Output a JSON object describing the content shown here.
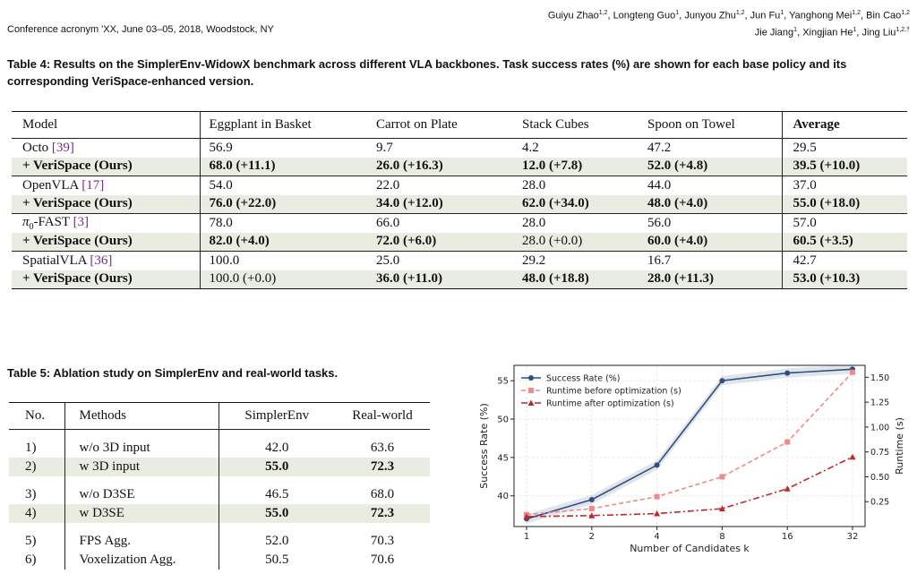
{
  "header": {
    "left": "Conference acronym 'XX, June 03–05, 2018, Woodstock, NY",
    "authors_line1": [
      {
        "name": "Guiyu Zhao",
        "sup": "1,2"
      },
      {
        "name": "Longteng Guo",
        "sup": "1"
      },
      {
        "name": "Junyou Zhu",
        "sup": "1,2"
      },
      {
        "name": "Jun Fu",
        "sup": "1"
      },
      {
        "name": "Yanghong Mei",
        "sup": "1,2"
      },
      {
        "name": "Bin Cao",
        "sup": "1,2"
      }
    ],
    "authors_line2": [
      {
        "name": "Jie Jiang",
        "sup": "1"
      },
      {
        "name": "Xingjian He",
        "sup": "1"
      },
      {
        "name": "Jing Liu",
        "sup": "1,2,†"
      }
    ]
  },
  "table4": {
    "caption": "Table 4: Results on the SimplerEnv-WidowX benchmark across different VLA backbones. Task success rates (%) are shown for each base policy and its corresponding VeriSpace-enhanced version.",
    "headers": [
      "Model",
      "Eggplant in Basket",
      "Carrot on Plate",
      "Stack Cubes",
      "Spoon on Towel",
      "Average"
    ],
    "groups": [
      {
        "base": {
          "model": "Octo",
          "cite": "39",
          "values": [
            "56.9",
            "9.7",
            "4.2",
            "47.2",
            "29.5"
          ]
        },
        "ours": {
          "model": "+ VeriSpace (Ours)",
          "values": [
            "68.0 (+11.1)",
            "26.0 (+16.3)",
            "12.0 (+7.8)",
            "52.0 (+4.8)",
            "39.5 (+10.0)"
          ],
          "bold": [
            true,
            true,
            true,
            true,
            true
          ]
        }
      },
      {
        "base": {
          "model": "OpenVLA",
          "cite": "17",
          "values": [
            "54.0",
            "22.0",
            "28.0",
            "44.0",
            "37.0"
          ]
        },
        "ours": {
          "model": "+ VeriSpace (Ours)",
          "values": [
            "76.0 (+22.0)",
            "34.0 (+12.0)",
            "62.0 (+34.0)",
            "48.0 (+4.0)",
            "55.0 (+18.0)"
          ],
          "bold": [
            true,
            true,
            true,
            true,
            true
          ]
        }
      },
      {
        "base": {
          "model": "π0-FAST",
          "cite": "3",
          "values": [
            "78.0",
            "66.0",
            "28.0",
            "56.0",
            "57.0"
          ]
        },
        "ours": {
          "model": "+ VeriSpace (Ours)",
          "values": [
            "82.0 (+4.0)",
            "72.0 (+6.0)",
            "28.0 (+0.0)",
            "60.0 (+4.0)",
            "60.5 (+3.5)"
          ],
          "bold": [
            true,
            true,
            false,
            true,
            true
          ]
        }
      },
      {
        "base": {
          "model": "SpatialVLA",
          "cite": "36",
          "values": [
            "100.0",
            "25.0",
            "29.2",
            "16.7",
            "42.7"
          ]
        },
        "ours": {
          "model": "+ VeriSpace (Ours)",
          "values": [
            "100.0 (+0.0)",
            "36.0 (+11.0)",
            "48.0 (+18.8)",
            "28.0 (+11.3)",
            "53.0 (+10.3)"
          ],
          "bold": [
            false,
            true,
            true,
            true,
            true
          ]
        }
      }
    ]
  },
  "table5": {
    "caption": "Table 5: Ablation study on SimplerEnv and real-world tasks.",
    "headers": [
      "No.",
      "Methods",
      "SimplerEnv",
      "Real-world"
    ],
    "groups": [
      [
        {
          "no": "1)",
          "method": "w/o 3D input",
          "simpler": "42.0",
          "real": "63.6",
          "shade": false
        },
        {
          "no": "2)",
          "method": "w 3D input",
          "simpler": "55.0",
          "real": "72.3",
          "shade": true
        }
      ],
      [
        {
          "no": "3)",
          "method": "w/o D3SE",
          "simpler": "46.5",
          "real": "68.0",
          "shade": false
        },
        {
          "no": "4)",
          "method": "w D3SE",
          "simpler": "55.0",
          "real": "72.3",
          "shade": true
        }
      ],
      [
        {
          "no": "5)",
          "method": "FPS Agg.",
          "simpler": "52.0",
          "real": "70.3",
          "shade": false
        },
        {
          "no": "6)",
          "method": "Voxelization Agg.",
          "simpler": "50.5",
          "real": "70.6",
          "shade": false
        }
      ]
    ]
  },
  "chart_data": {
    "type": "line",
    "x": [
      "1",
      "2",
      "4",
      "8",
      "16",
      "32"
    ],
    "xlabel": "Number of Candidates k",
    "ylabel": "Success Rate (%)",
    "y2label": "Runtime (s)",
    "ylim": [
      36,
      57
    ],
    "yticks": [
      40,
      45,
      50,
      55
    ],
    "y2lim": [
      0.0,
      1.62
    ],
    "y2ticks": [
      "0.25",
      "0.50",
      "0.75",
      "1.00",
      "1.25",
      "1.50"
    ],
    "legend_position": "top-left",
    "grid": true,
    "series": [
      {
        "name": "Success Rate (%)",
        "axis": "left",
        "values": [
          37.0,
          39.5,
          44.0,
          55.0,
          56.0,
          56.5
        ],
        "band": 0.6,
        "color": "#2f4f7f",
        "style": "solid",
        "marker": "circle"
      },
      {
        "name": "Runtime before optimization (s)",
        "axis": "right",
        "values": [
          0.12,
          0.18,
          0.3,
          0.5,
          0.85,
          1.55
        ],
        "color": "#f08a8a",
        "style": "dashed",
        "marker": "square"
      },
      {
        "name": "Runtime after optimization (s)",
        "axis": "right",
        "values": [
          0.1,
          0.11,
          0.13,
          0.18,
          0.38,
          0.7
        ],
        "color": "#c0272d",
        "style": "dashdot",
        "marker": "triangle"
      }
    ]
  }
}
